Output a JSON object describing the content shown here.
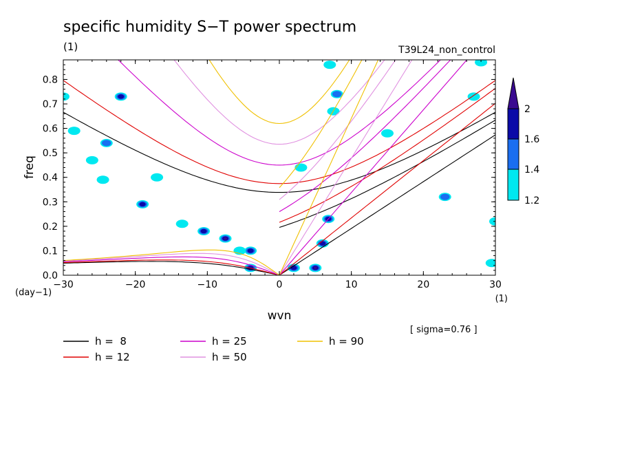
{
  "chart_data": {
    "type": "contour",
    "title": "specific humidity S−T power spectrum",
    "unit_note": "(1)",
    "run_label": "T39L24_non_control",
    "xlabel": "wvn",
    "xunit": "(1)",
    "ylabel": "freq",
    "yunit": "(day−1)",
    "xlim": [
      -30,
      30
    ],
    "ylim": [
      0,
      0.88
    ],
    "xticks": [
      "−30",
      "−20",
      "−10",
      "0",
      "10",
      "20",
      "30"
    ],
    "yticks": [
      "0.0",
      "0.1",
      "0.2",
      "0.3",
      "0.4",
      "0.5",
      "0.6",
      "0.7",
      "0.8"
    ],
    "sigma_note": "[ sigma=0.76 ]",
    "colorbar": {
      "levels": [
        "1.2",
        "1.4",
        "1.6",
        "2"
      ],
      "colors": [
        "#00e8f0",
        "#1a6ef0",
        "#0a0aa8",
        "#3a0a90"
      ]
    },
    "series": [
      {
        "name": "h =  8",
        "h": 8,
        "color": "#000000"
      },
      {
        "name": "h = 12",
        "h": 12,
        "color": "#e00000"
      },
      {
        "name": "h = 25",
        "h": 25,
        "color": "#cc00cc"
      },
      {
        "name": "h = 50",
        "h": 50,
        "color": "#e090e0"
      },
      {
        "name": "h = 90",
        "h": 90,
        "color": "#f0c000"
      }
    ],
    "blobs": [
      {
        "x": -30,
        "y": 0.73,
        "level": 1
      },
      {
        "x": -28.5,
        "y": 0.59,
        "level": 1
      },
      {
        "x": -26,
        "y": 0.47,
        "level": 1
      },
      {
        "x": -24,
        "y": 0.54,
        "level": 2
      },
      {
        "x": -22,
        "y": 0.73,
        "level": 3
      },
      {
        "x": -24.5,
        "y": 0.39,
        "level": 1
      },
      {
        "x": -19,
        "y": 0.29,
        "level": 3
      },
      {
        "x": -17,
        "y": 0.4,
        "level": 1
      },
      {
        "x": -13.5,
        "y": 0.21,
        "level": 1
      },
      {
        "x": -10.5,
        "y": 0.18,
        "level": 3
      },
      {
        "x": -7.5,
        "y": 0.15,
        "level": 4
      },
      {
        "x": -5.5,
        "y": 0.1,
        "level": 1
      },
      {
        "x": -4,
        "y": 0.03,
        "level": 3
      },
      {
        "x": -4,
        "y": 0.1,
        "level": 3
      },
      {
        "x": 2,
        "y": 0.03,
        "level": 3
      },
      {
        "x": 5,
        "y": 0.03,
        "level": 4
      },
      {
        "x": 6,
        "y": 0.13,
        "level": 3
      },
      {
        "x": 6.8,
        "y": 0.23,
        "level": 3
      },
      {
        "x": 7,
        "y": 0.86,
        "level": 1
      },
      {
        "x": 7.5,
        "y": 0.67,
        "level": 1
      },
      {
        "x": 8,
        "y": 0.74,
        "level": 2
      },
      {
        "x": 3,
        "y": 0.44,
        "level": 1
      },
      {
        "x": 27,
        "y": 0.73,
        "level": 1
      },
      {
        "x": 30,
        "y": 0.22,
        "level": 1
      },
      {
        "x": 23,
        "y": 0.32,
        "level": 2
      },
      {
        "x": 28,
        "y": 0.87,
        "level": 1
      },
      {
        "x": 29.5,
        "y": 0.05,
        "level": 1
      },
      {
        "x": 15,
        "y": 0.58,
        "level": 1
      }
    ]
  }
}
